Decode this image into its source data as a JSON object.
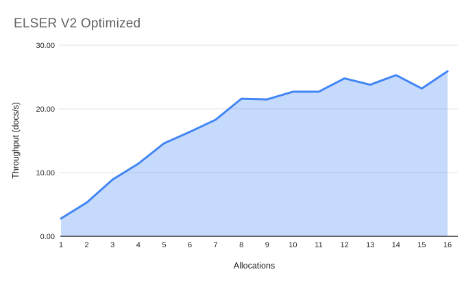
{
  "title": "ELSER V2 Optimized",
  "chart_data": {
    "type": "area",
    "title": "ELSER V2 Optimized",
    "xlabel": "Allocations",
    "ylabel": "Throughput (docs/s)",
    "x": [
      1,
      2,
      3,
      4,
      5,
      6,
      7,
      8,
      9,
      10,
      11,
      12,
      13,
      14,
      15,
      16
    ],
    "values": [
      2.8,
      5.3,
      8.9,
      11.4,
      14.6,
      16.4,
      18.3,
      21.6,
      21.5,
      22.7,
      22.7,
      24.8,
      23.8,
      25.3,
      23.2,
      25.9
    ],
    "ylim": [
      0,
      30
    ],
    "yticks": [
      0,
      10,
      20,
      30
    ],
    "ytick_labels": [
      "0.00",
      "10.00",
      "20.00",
      "30.00"
    ],
    "xtick_labels": [
      "1",
      "2",
      "3",
      "4",
      "5",
      "6",
      "7",
      "8",
      "9",
      "10",
      "11",
      "12",
      "13",
      "14",
      "15",
      "16"
    ],
    "grid": true,
    "legend": "none",
    "colors": {
      "line": "#4285f4",
      "fill_rgba": "rgba(66,133,244,0.30)",
      "grid": "#e3e3e3",
      "axis": "#333333",
      "tick_text": "#222222",
      "axis_title_text": "#1f1f1f",
      "title_text": "#616161",
      "background": "#ffffff"
    }
  }
}
